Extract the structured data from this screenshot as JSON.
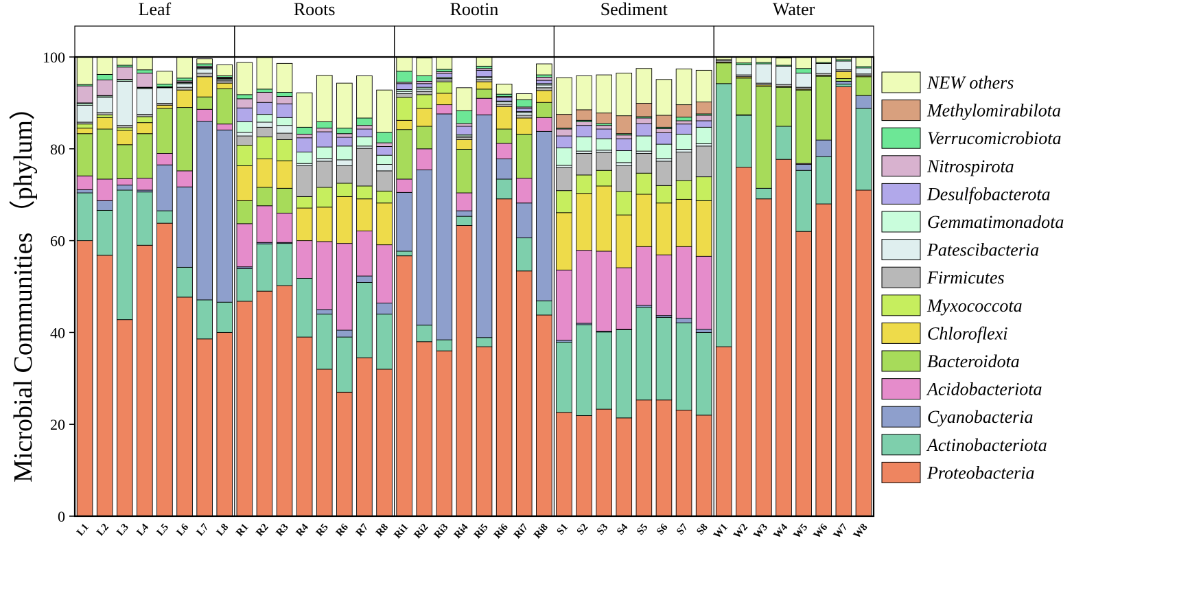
{
  "chart_data": {
    "type": "stacked-bar",
    "ylabel": "Microbial Communities （phylum）",
    "ylim": [
      0,
      100
    ],
    "yticks": [
      0,
      20,
      40,
      60,
      80,
      100
    ],
    "groups": [
      {
        "name": "Leaf",
        "categories": [
          "L1",
          "L2",
          "L3",
          "L4",
          "L5",
          "L6",
          "L7",
          "L8"
        ]
      },
      {
        "name": "Roots",
        "categories": [
          "R1",
          "R2",
          "R3",
          "R4",
          "R5",
          "R6",
          "R7",
          "R8"
        ]
      },
      {
        "name": "Rootin",
        "categories": [
          "Ri1",
          "Ri2",
          "Ri3",
          "Ri4",
          "Ri5",
          "Ri6",
          "Ri7",
          "Ri8"
        ]
      },
      {
        "name": "Sediment",
        "categories": [
          "S1",
          "S2",
          "S3",
          "S4",
          "S5",
          "S6",
          "S7",
          "S8"
        ]
      },
      {
        "name": "Water",
        "categories": [
          "W1",
          "W2",
          "W3",
          "W4",
          "W5",
          "W6",
          "W7",
          "W8"
        ]
      }
    ],
    "legend_order": [
      "NEW others",
      "Methylomirabilota",
      "Verrucomicrobiota",
      "Nitrospirota",
      "Desulfobacterota",
      "Gemmatimonadota",
      "Patescibacteria",
      "Firmicutes",
      "Myxococcota",
      "Chloroflexi",
      "Bacteroidota",
      "Acidobacteriota",
      "Cyanobacteria",
      "Actinobacteriota",
      "Proteobacteria"
    ],
    "series": [
      {
        "name": "Proteobacteria",
        "color": "#EE8560",
        "values": [
          60,
          56.8,
          42.8,
          59,
          63.8,
          47.7,
          38.6,
          40,
          46.8,
          49,
          50.2,
          39,
          32,
          27,
          34.5,
          32,
          56.7,
          38,
          36,
          63.3,
          36.9,
          69.1,
          53.4,
          43.8,
          22.6,
          21.9,
          23.3,
          21.4,
          25.3,
          25.3,
          23.1,
          22,
          36.9,
          76,
          69.1,
          77.7,
          62,
          68,
          93.5,
          71
        ]
      },
      {
        "name": "Actinobacteriota",
        "color": "#7ECFAC",
        "values": [
          10.4,
          9.8,
          28.2,
          11.6,
          2.7,
          6.5,
          8.5,
          6.6,
          7.1,
          10.3,
          9.2,
          12.8,
          12,
          12,
          16.4,
          12,
          1,
          3.6,
          2.4,
          2,
          2,
          4.3,
          7.2,
          3.1,
          15.3,
          19.8,
          16.8,
          19.2,
          20.2,
          18,
          19,
          18,
          57.3,
          11.3,
          2.3,
          7.2,
          13.3,
          10.3,
          0.6,
          17.8
        ]
      },
      {
        "name": "Cyanobacteria",
        "color": "#8E9FCC",
        "values": [
          0.7,
          2.1,
          1.1,
          0.4,
          10,
          17.5,
          38.9,
          37.5,
          0.4,
          0.3,
          0.2,
          0,
          1,
          1.5,
          1.4,
          2.4,
          12.8,
          33.8,
          49.2,
          1.2,
          48.5,
          4.4,
          7.6,
          36.9,
          0.4,
          0.3,
          0.2,
          0.1,
          0.4,
          0.4,
          1,
          0.7,
          0,
          0,
          0,
          0,
          1.3,
          3.6,
          0.6,
          2.8
        ]
      },
      {
        "name": "Acidobacteriota",
        "color": "#E58CCB",
        "values": [
          3,
          4.7,
          1.4,
          2.6,
          2.5,
          3.5,
          2.6,
          1.3,
          9.4,
          8,
          6.4,
          8.2,
          14.8,
          18.9,
          9.8,
          12.7,
          2.9,
          4.6,
          2,
          3.9,
          3.6,
          3.4,
          5.4,
          3,
          15.3,
          15.9,
          17.4,
          13.4,
          12.8,
          13.2,
          15.6,
          15.9,
          0,
          0.1,
          0,
          0,
          0.2,
          0,
          0,
          0
        ]
      },
      {
        "name": "Bacteroidota",
        "color": "#A7DB5A",
        "values": [
          9.2,
          10.9,
          7.4,
          9.7,
          9.8,
          13.8,
          2.7,
          7.7,
          5,
          4,
          5.4,
          0,
          0,
          0,
          0,
          0,
          10.8,
          4.9,
          0,
          9.5,
          2,
          3.1,
          9.6,
          3.3,
          0,
          0,
          0,
          0,
          0,
          0,
          0,
          0,
          4.5,
          8,
          22.2,
          8.5,
          16,
          13.9,
          0.6,
          4.1
        ]
      },
      {
        "name": "Chloroflexi",
        "color": "#EEDB4A",
        "values": [
          1.2,
          2.5,
          3.1,
          2.4,
          0.7,
          3.8,
          4.4,
          1.2,
          7.6,
          6.2,
          6,
          7.1,
          7.5,
          10.2,
          7,
          9.1,
          2,
          3.9,
          2.5,
          2.1,
          1.6,
          4.9,
          3.5,
          2.6,
          12.5,
          12.4,
          14.2,
          11.5,
          11.4,
          11.3,
          10.3,
          12.1,
          0.2,
          0.3,
          0.3,
          0.2,
          0.2,
          0.2,
          1.5,
          0.2
        ]
      },
      {
        "name": "Myxococcota",
        "color": "#C6EE5E",
        "values": [
          0.9,
          0.6,
          0.6,
          1.3,
          0,
          0,
          0,
          0,
          4.5,
          4.8,
          4.6,
          2.5,
          4.3,
          2.9,
          2.8,
          2.6,
          5,
          3,
          2.5,
          0,
          0,
          0,
          0,
          0,
          4.8,
          4,
          3.4,
          5.1,
          4.6,
          3.8,
          4.1,
          5.2,
          0,
          0,
          0,
          0,
          0,
          0,
          0,
          0
        ]
      },
      {
        "name": "Firmicutes",
        "color": "#B8B8B8",
        "values": [
          0.4,
          0.5,
          0.5,
          0.5,
          0.4,
          0.6,
          0.8,
          0.5,
          2,
          2.1,
          1.4,
          6.7,
          5.7,
          3.8,
          8.2,
          4.4,
          0.8,
          0.7,
          0.4,
          0.5,
          0.5,
          0.5,
          0.6,
          0.6,
          5,
          4.7,
          3.9,
          5.6,
          4.3,
          5.3,
          6.2,
          6.7,
          0.4,
          0.4,
          0.4,
          0.4,
          0.4,
          0.4,
          0.4,
          0.4
        ]
      },
      {
        "name": "Patescibacteria",
        "color": "#DFEFEF",
        "values": [
          3.7,
          3.3,
          9.6,
          5.6,
          3.4,
          0.8,
          0.9,
          0.3,
          0.8,
          1.1,
          1.7,
          0.5,
          0.6,
          1.3,
          0.5,
          1.4,
          0.5,
          0.5,
          0.3,
          0.3,
          0.4,
          0.5,
          0.6,
          0.6,
          0.5,
          0.5,
          0.5,
          0.7,
          0.5,
          0.6,
          0.6,
          0.5,
          0,
          2.2,
          4.2,
          4,
          3.1,
          2.2,
          1.9,
          1.3
        ]
      },
      {
        "name": "Gemmatimonadota",
        "color": "#C9FDDC",
        "values": [
          0.4,
          0.3,
          0.3,
          0.2,
          0,
          0.2,
          0.2,
          0.2,
          2.3,
          1.7,
          1.7,
          2.5,
          2.5,
          3,
          2,
          2,
          0.4,
          0.4,
          0.3,
          0.3,
          0.2,
          0.2,
          0.2,
          0.3,
          3.8,
          3.1,
          2.5,
          2.6,
          3.3,
          3.1,
          3.3,
          3.6,
          0,
          0,
          0,
          0,
          0,
          0,
          0,
          0
        ]
      },
      {
        "name": "Desulfobacterota",
        "color": "#B1A8EA",
        "values": [
          0.1,
          0.1,
          0.1,
          0.1,
          0.1,
          0.1,
          0.1,
          0.1,
          3,
          2.6,
          3,
          3.1,
          3.3,
          1.9,
          1.7,
          1.9,
          1.3,
          0.8,
          0.8,
          1.8,
          1.4,
          0.7,
          0.7,
          0.7,
          2.6,
          2.5,
          2.1,
          2.6,
          2.7,
          2.5,
          2.2,
          1.4,
          0,
          0,
          0,
          0,
          0,
          0,
          0,
          0
        ]
      },
      {
        "name": "Nitrospirota",
        "color": "#D8B2CF",
        "values": [
          3.7,
          3.4,
          2.7,
          3.1,
          0.1,
          0.3,
          0.3,
          0.2,
          2,
          2.2,
          1.6,
          0.8,
          0.8,
          0.8,
          0.8,
          0.8,
          0.3,
          0.5,
          0.4,
          0.6,
          0.4,
          0.3,
          0.3,
          0.7,
          1.5,
          0.8,
          0.8,
          0.8,
          1.2,
          0.9,
          0.7,
          1.2,
          0,
          0,
          0,
          0,
          0,
          0,
          0,
          0
        ]
      },
      {
        "name": "Verrucomicrobiota",
        "color": "#6DE796",
        "values": [
          0.3,
          1.2,
          0.4,
          0.7,
          0.6,
          0.6,
          0.5,
          0.3,
          0.9,
          0.7,
          0.9,
          1.5,
          1.4,
          1.2,
          1.6,
          2.3,
          2.4,
          1.2,
          0.5,
          2.8,
          0.5,
          0.5,
          1.6,
          0.5,
          0.2,
          0.3,
          0.4,
          0.3,
          0.3,
          0.3,
          0.8,
          0.3,
          0.1,
          0.4,
          0.3,
          0.2,
          1,
          0.2,
          0.3,
          0.3
        ]
      },
      {
        "name": "Methylomirabilota",
        "color": "#D8A07E",
        "values": [
          0,
          0,
          0,
          0,
          0,
          0,
          0,
          0,
          0,
          0,
          0,
          0,
          0,
          0,
          0,
          0,
          0,
          0,
          0,
          0,
          0,
          0,
          0,
          0,
          3,
          2.3,
          2.3,
          3.9,
          2.9,
          2.6,
          2.7,
          2.6,
          0,
          0,
          0,
          0,
          0,
          0,
          0,
          0
        ]
      },
      {
        "name": "NEW others",
        "color": "#EEFCB8",
        "values": [
          6.2,
          3.8,
          2.6,
          3.4,
          2.8,
          4.6,
          1.1,
          2.4,
          7,
          6.9,
          6.3,
          7.5,
          10.1,
          9.8,
          9.2,
          9.2,
          4.8,
          3.9,
          2.9,
          5,
          2.6,
          2.2,
          1.3,
          2.4,
          8,
          7.4,
          8.3,
          9.3,
          7.6,
          7.8,
          7.8,
          6.9,
          0.6,
          1.3,
          1.2,
          1.6,
          2.5,
          1.2,
          1.2,
          2.1
        ]
      }
    ]
  }
}
